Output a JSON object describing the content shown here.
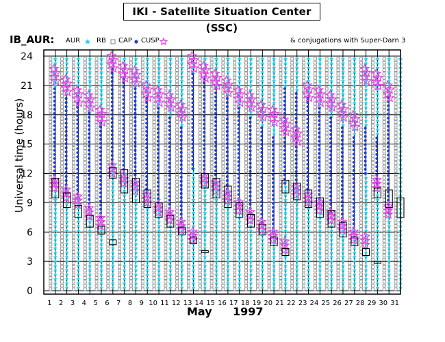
{
  "title": "IKI - Satellite Situation Center (SSC)",
  "subtitle_left": "IB_AUR:",
  "legend": {
    "items": [
      {
        "label": "AUR",
        "marker": "star",
        "color": "#22d3ee"
      },
      {
        "label": "RB",
        "marker": "square",
        "color": "#808080"
      },
      {
        "label": "CAP",
        "marker": "dot",
        "color": "#1e3fd0"
      },
      {
        "label": "CUSP",
        "marker": "star-outline",
        "color": "#e048e0"
      }
    ]
  },
  "subtitle_right": "& conjugations with Super-Darn 3",
  "month_label": "May",
  "year_label": "1997",
  "colors": {
    "aur": "#22d3ee",
    "rb": "#808080",
    "cap": "#1e3fd0",
    "cusp": "#e048e0",
    "conjugation_box": "#000000"
  },
  "chart_data": {
    "type": "scatter",
    "title": "IKI - Satellite Situation Center (SSC)",
    "xlabel": "May 1997",
    "ylabel": "Universal time (hours)",
    "x_ticks": [
      1,
      2,
      3,
      4,
      5,
      6,
      7,
      8,
      9,
      10,
      11,
      12,
      13,
      14,
      15,
      16,
      17,
      18,
      19,
      20,
      21,
      22,
      23,
      24,
      25,
      26,
      27,
      28,
      29,
      30,
      31
    ],
    "y_ticks": [
      0,
      3,
      6,
      9,
      12,
      15,
      18,
      21,
      24
    ],
    "xlim": [
      1,
      32
    ],
    "ylim": [
      0,
      24
    ],
    "grid": true,
    "series": [
      {
        "name": "CAP",
        "values": [
          {
            "day": 2,
            "cap_from": 11.0,
            "cap_to": 21.0,
            "cusp_high": 22.7,
            "cusp_low": 10.5
          },
          {
            "day": 3,
            "cap_from": 10.0,
            "cap_to": 20.0,
            "cusp_high": 21.6,
            "cusp_low": 9.5
          },
          {
            "day": 4,
            "cap_from": 9.5,
            "cap_to": 19.5,
            "cusp_high": 20.5,
            "cusp_low": 8.8
          },
          {
            "day": 5,
            "cap_from": 8.5,
            "cap_to": 18.5,
            "cusp_high": 20.0,
            "cusp_low": 7.6
          },
          {
            "day": 6,
            "cap_from": 7.5,
            "cap_to": 17.5,
            "cusp_high": 18.5,
            "cusp_low": 6.6
          },
          {
            "day": 7,
            "cap_from": 13.0,
            "cap_to": 23.0,
            "cusp_high": 24.0,
            "cusp_low": 12.0
          },
          {
            "day": 8,
            "cap_from": 12.0,
            "cap_to": 22.0,
            "cusp_high": 23.0,
            "cusp_low": 11.0
          },
          {
            "day": 9,
            "cap_from": 11.0,
            "cap_to": 21.0,
            "cusp_high": 22.5,
            "cusp_low": 10.2
          },
          {
            "day": 10,
            "cap_from": 10.0,
            "cap_to": 20.0,
            "cusp_high": 21.0,
            "cusp_low": 9.0
          },
          {
            "day": 11,
            "cap_from": 9.0,
            "cap_to": 19.0,
            "cusp_high": 20.5,
            "cusp_low": 8.0
          },
          {
            "day": 12,
            "cap_from": 8.0,
            "cap_to": 18.0,
            "cusp_high": 20.0,
            "cusp_low": 7.2
          },
          {
            "day": 13,
            "cap_from": 7.0,
            "cap_to": 17.0,
            "cusp_high": 19.0,
            "cusp_low": 6.2
          },
          {
            "day": 14,
            "cap_from": 12.5,
            "cap_to": 22.5,
            "cusp_high": 24.0,
            "cusp_low": 5.2
          },
          {
            "day": 15,
            "cap_from": 12.0,
            "cap_to": 22.0,
            "cusp_high": 23.0,
            "cusp_low": 11.0
          },
          {
            "day": 16,
            "cap_from": 11.0,
            "cap_to": 21.0,
            "cusp_high": 22.2,
            "cusp_low": 10.2
          },
          {
            "day": 17,
            "cap_from": 10.0,
            "cap_to": 20.0,
            "cusp_high": 21.5,
            "cusp_low": 9.2
          },
          {
            "day": 18,
            "cap_from": 9.0,
            "cap_to": 19.0,
            "cusp_high": 20.5,
            "cusp_low": 8.2
          },
          {
            "day": 19,
            "cap_from": 8.0,
            "cap_to": 18.0,
            "cusp_high": 20.0,
            "cusp_low": 7.2
          },
          {
            "day": 20,
            "cap_from": 7.0,
            "cap_to": 17.0,
            "cusp_high": 19.0,
            "cusp_low": 6.2
          },
          {
            "day": 21,
            "cap_from": 6.0,
            "cap_to": 16.0,
            "cusp_high": 18.5,
            "cusp_low": 5.2
          },
          {
            "day": 22,
            "cap_from": 11.0,
            "cap_to": 21.0,
            "cusp_high": 17.5,
            "cusp_low": 4.2
          },
          {
            "day": 23,
            "cap_from": 10.5,
            "cap_to": 20.5,
            "cusp_high": 16.5,
            "cusp_low": 9.8
          },
          {
            "day": 24,
            "cap_from": 10.0,
            "cap_to": 20.0,
            "cusp_high": 21.0,
            "cusp_low": 9.0
          },
          {
            "day": 25,
            "cap_from": 9.0,
            "cap_to": 19.0,
            "cusp_high": 20.5,
            "cusp_low": 8.2
          },
          {
            "day": 26,
            "cap_from": 8.0,
            "cap_to": 18.0,
            "cusp_high": 20.0,
            "cusp_low": 7.2
          },
          {
            "day": 27,
            "cap_from": 7.0,
            "cap_to": 17.0,
            "cusp_high": 19.0,
            "cusp_low": 6.2
          },
          {
            "day": 28,
            "cap_from": 6.0,
            "cap_to": 16.0,
            "cusp_high": 18.0,
            "cusp_low": 5.2
          },
          {
            "day": 29,
            "cap_from": 12.0,
            "cap_to": 17.0,
            "cusp_high": 22.7,
            "cusp_low": 4.7
          },
          {
            "day": 30,
            "cap_from": 11.0,
            "cap_to": 16.0,
            "cusp_high": 22.2,
            "cusp_low": 10.5
          },
          {
            "day": 31,
            "cap_from": 8.0,
            "cap_to": 20.0,
            "cusp_high": 21.0,
            "cusp_low": 7.8
          }
        ]
      }
    ],
    "conjugations": [
      {
        "day": 2,
        "from": 9.5,
        "to": 11.5
      },
      {
        "day": 3,
        "from": 8.5,
        "to": 10.0
      },
      {
        "day": 4,
        "from": 7.5,
        "to": 8.7
      },
      {
        "day": 5,
        "from": 6.5,
        "to": 7.7
      },
      {
        "day": 6,
        "from": 5.8,
        "to": 6.6
      },
      {
        "day": 7,
        "from": 4.7,
        "to": 5.2
      },
      {
        "day": 7,
        "from": 11.5,
        "to": 12.6
      },
      {
        "day": 8,
        "from": 10.0,
        "to": 12.4
      },
      {
        "day": 9,
        "from": 9.0,
        "to": 11.5
      },
      {
        "day": 10,
        "from": 8.5,
        "to": 10.3
      },
      {
        "day": 11,
        "from": 7.5,
        "to": 9.0
      },
      {
        "day": 12,
        "from": 6.5,
        "to": 7.7
      },
      {
        "day": 13,
        "from": 5.7,
        "to": 6.5
      },
      {
        "day": 14,
        "from": 4.8,
        "to": 5.5
      },
      {
        "day": 15,
        "from": 3.9,
        "to": 4.1
      },
      {
        "day": 15,
        "from": 10.5,
        "to": 12.0
      },
      {
        "day": 16,
        "from": 9.5,
        "to": 11.5
      },
      {
        "day": 17,
        "from": 8.5,
        "to": 10.7
      },
      {
        "day": 18,
        "from": 7.5,
        "to": 9.0
      },
      {
        "day": 19,
        "from": 6.5,
        "to": 7.8
      },
      {
        "day": 20,
        "from": 5.7,
        "to": 6.8
      },
      {
        "day": 21,
        "from": 4.6,
        "to": 5.5
      },
      {
        "day": 22,
        "from": 3.6,
        "to": 4.3
      },
      {
        "day": 22,
        "from": 10.0,
        "to": 11.3
      },
      {
        "day": 23,
        "from": 9.3,
        "to": 11.0
      },
      {
        "day": 24,
        "from": 8.5,
        "to": 10.3
      },
      {
        "day": 25,
        "from": 7.5,
        "to": 9.5
      },
      {
        "day": 26,
        "from": 6.5,
        "to": 8.2
      },
      {
        "day": 27,
        "from": 5.5,
        "to": 7.0
      },
      {
        "day": 28,
        "from": 4.6,
        "to": 5.5
      },
      {
        "day": 29,
        "from": 3.6,
        "to": 4.3
      },
      {
        "day": 30,
        "from": 2.8,
        "to": 3.0
      },
      {
        "day": 30,
        "from": 9.5,
        "to": 10.5
      },
      {
        "day": 31,
        "from": 8.5,
        "to": 10.3
      },
      {
        "day": 32,
        "from": 7.5,
        "to": 9.5
      }
    ]
  }
}
